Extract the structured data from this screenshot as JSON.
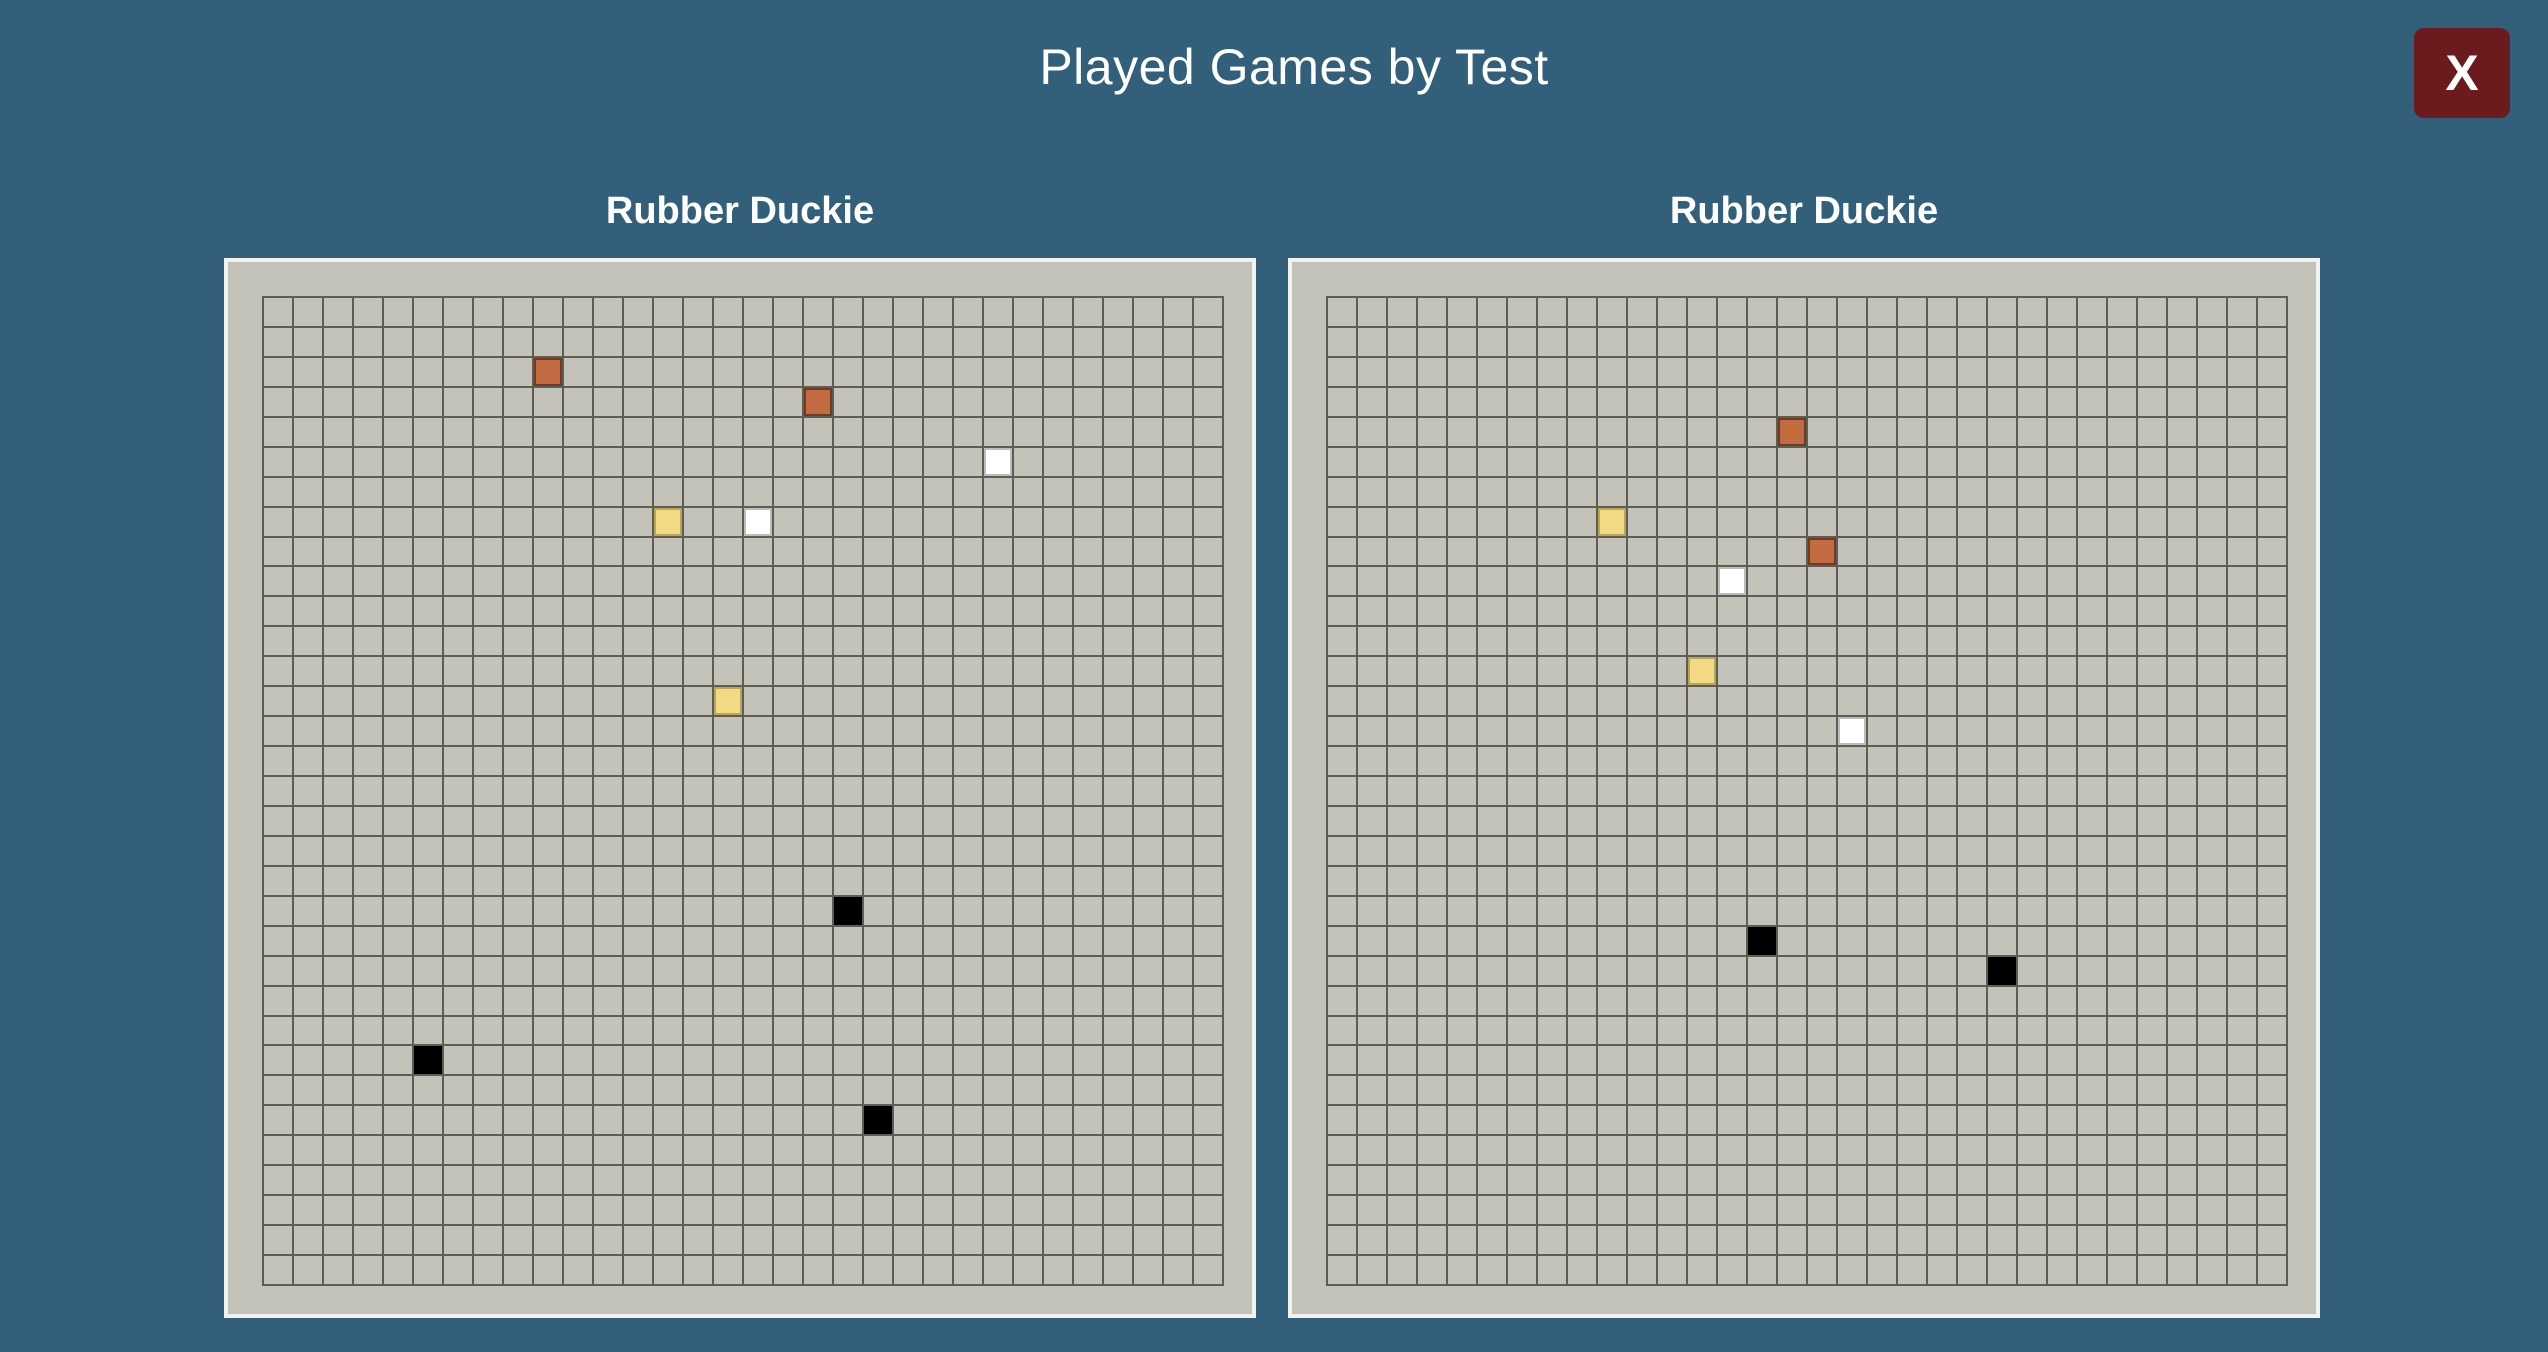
{
  "header": {
    "title": "Played Games by Test",
    "close_label": "X"
  },
  "boards": [
    {
      "title": "Rubber Duckie",
      "cols": 32,
      "rows": 33,
      "pieces": [
        {
          "row": 2,
          "col": 9,
          "color": "orange"
        },
        {
          "row": 3,
          "col": 18,
          "color": "orange"
        },
        {
          "row": 5,
          "col": 24,
          "color": "white"
        },
        {
          "row": 7,
          "col": 13,
          "color": "yellow"
        },
        {
          "row": 7,
          "col": 16,
          "color": "white"
        },
        {
          "row": 13,
          "col": 15,
          "color": "yellow"
        },
        {
          "row": 20,
          "col": 19,
          "color": "black"
        },
        {
          "row": 25,
          "col": 5,
          "color": "black"
        },
        {
          "row": 27,
          "col": 20,
          "color": "black"
        }
      ]
    },
    {
      "title": "Rubber Duckie",
      "cols": 32,
      "rows": 33,
      "pieces": [
        {
          "row": 4,
          "col": 15,
          "color": "orange"
        },
        {
          "row": 7,
          "col": 9,
          "color": "yellow"
        },
        {
          "row": 8,
          "col": 16,
          "color": "orange"
        },
        {
          "row": 9,
          "col": 13,
          "color": "white"
        },
        {
          "row": 12,
          "col": 12,
          "color": "yellow"
        },
        {
          "row": 14,
          "col": 17,
          "color": "white"
        },
        {
          "row": 21,
          "col": 14,
          "color": "black"
        },
        {
          "row": 22,
          "col": 22,
          "color": "black"
        }
      ]
    }
  ]
}
